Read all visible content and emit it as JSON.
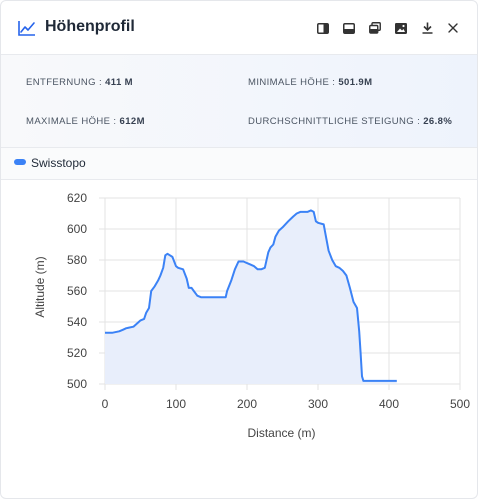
{
  "window": {
    "title": "Höhenprofil",
    "tools": [
      {
        "name": "dock-right-button",
        "icon": "dock-right-icon"
      },
      {
        "name": "dock-bottom-button",
        "icon": "dock-bottom-icon"
      },
      {
        "name": "float-window-button",
        "icon": "float-window-icon"
      },
      {
        "name": "image-export-button",
        "icon": "image-icon"
      },
      {
        "name": "download-button",
        "icon": "download-icon"
      },
      {
        "name": "close-button",
        "icon": "close-icon"
      }
    ]
  },
  "stats": {
    "distance_label": "ENTFERNUNG :",
    "distance_value": "411 M",
    "min_label": "MINIMALE HÖHE :",
    "min_value": "501.9M",
    "max_label": "MAXIMALE HÖHE :",
    "max_value": "612M",
    "slope_label": "DURCHSCHNITTLICHE STEIGUNG :",
    "slope_value": "26.8%"
  },
  "legend": {
    "label": "Swisstopo",
    "color": "#3b82f6"
  },
  "chart_data": {
    "type": "area",
    "xlabel": "Distance (m)",
    "ylabel": "Altitude (m)",
    "xlim": [
      0,
      500
    ],
    "ylim": [
      500,
      620
    ],
    "xticks": [
      "0",
      "100",
      "200",
      "300",
      "400",
      "500"
    ],
    "yticks": [
      "500",
      "520",
      "540",
      "560",
      "580",
      "600",
      "620"
    ],
    "grid": true,
    "line_color": "#3b82f6",
    "fill_color": "#e8eefb",
    "series": [
      {
        "name": "Swisstopo",
        "x": [
          0,
          10,
          20,
          25,
          30,
          40,
          45,
          50,
          55,
          58,
          62,
          65,
          70,
          75,
          78,
          82,
          85,
          88,
          95,
          100,
          103,
          110,
          115,
          118,
          122,
          125,
          130,
          135,
          140,
          145,
          150,
          160,
          170,
          172,
          178,
          183,
          188,
          195,
          200,
          205,
          210,
          215,
          220,
          225,
          230,
          233,
          237,
          240,
          245,
          250,
          258,
          265,
          270,
          275,
          280,
          285,
          290,
          294,
          297,
          300,
          308,
          310,
          315,
          320,
          325,
          330,
          335,
          340,
          345,
          350,
          355,
          358,
          360,
          362,
          364,
          366,
          369,
          380,
          390,
          400,
          411
        ],
        "y": [
          533,
          533,
          534,
          535,
          536,
          537,
          539,
          541,
          542,
          546,
          549,
          560,
          563,
          567,
          570,
          575,
          583,
          584,
          582,
          576,
          575,
          574,
          568,
          562,
          562,
          560,
          557,
          556,
          556,
          556,
          556,
          556,
          556,
          560,
          567,
          574,
          579,
          579,
          578,
          577,
          576,
          574,
          574,
          575,
          585,
          588,
          590,
          595,
          599,
          601,
          605,
          608,
          610,
          611,
          611,
          611,
          612,
          611,
          605,
          604,
          603,
          598,
          586,
          580,
          576,
          575,
          573,
          570,
          562,
          553,
          549,
          534,
          520,
          505,
          502,
          502,
          502,
          502,
          502,
          502,
          502
        ]
      }
    ]
  }
}
